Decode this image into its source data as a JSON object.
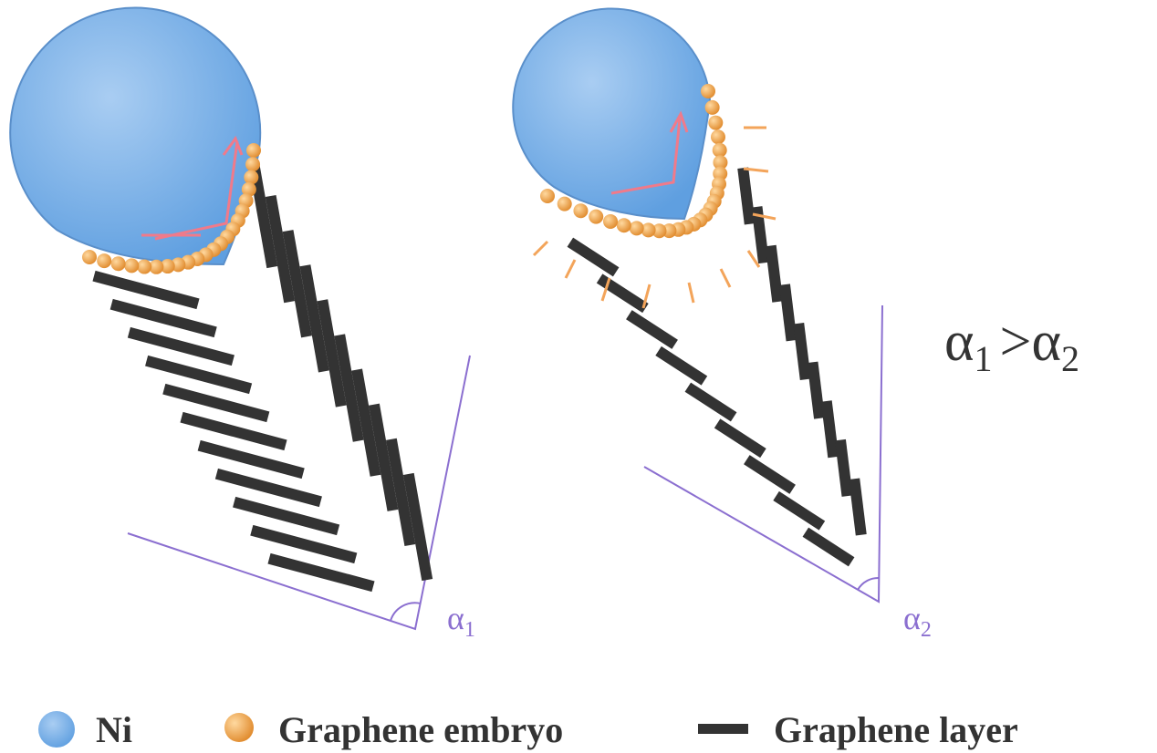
{
  "angle_labels": [
    {
      "symbol": "α",
      "subscript": "1"
    },
    {
      "symbol": "α",
      "subscript": "2"
    }
  ],
  "comparison": {
    "left": {
      "symbol": "α",
      "subscript": "1"
    },
    "operator": ">",
    "right": {
      "symbol": "α",
      "subscript": "2"
    }
  },
  "legend": [
    {
      "label": "Ni"
    },
    {
      "label": "Graphene embryo"
    },
    {
      "label": "Graphene layer"
    }
  ]
}
